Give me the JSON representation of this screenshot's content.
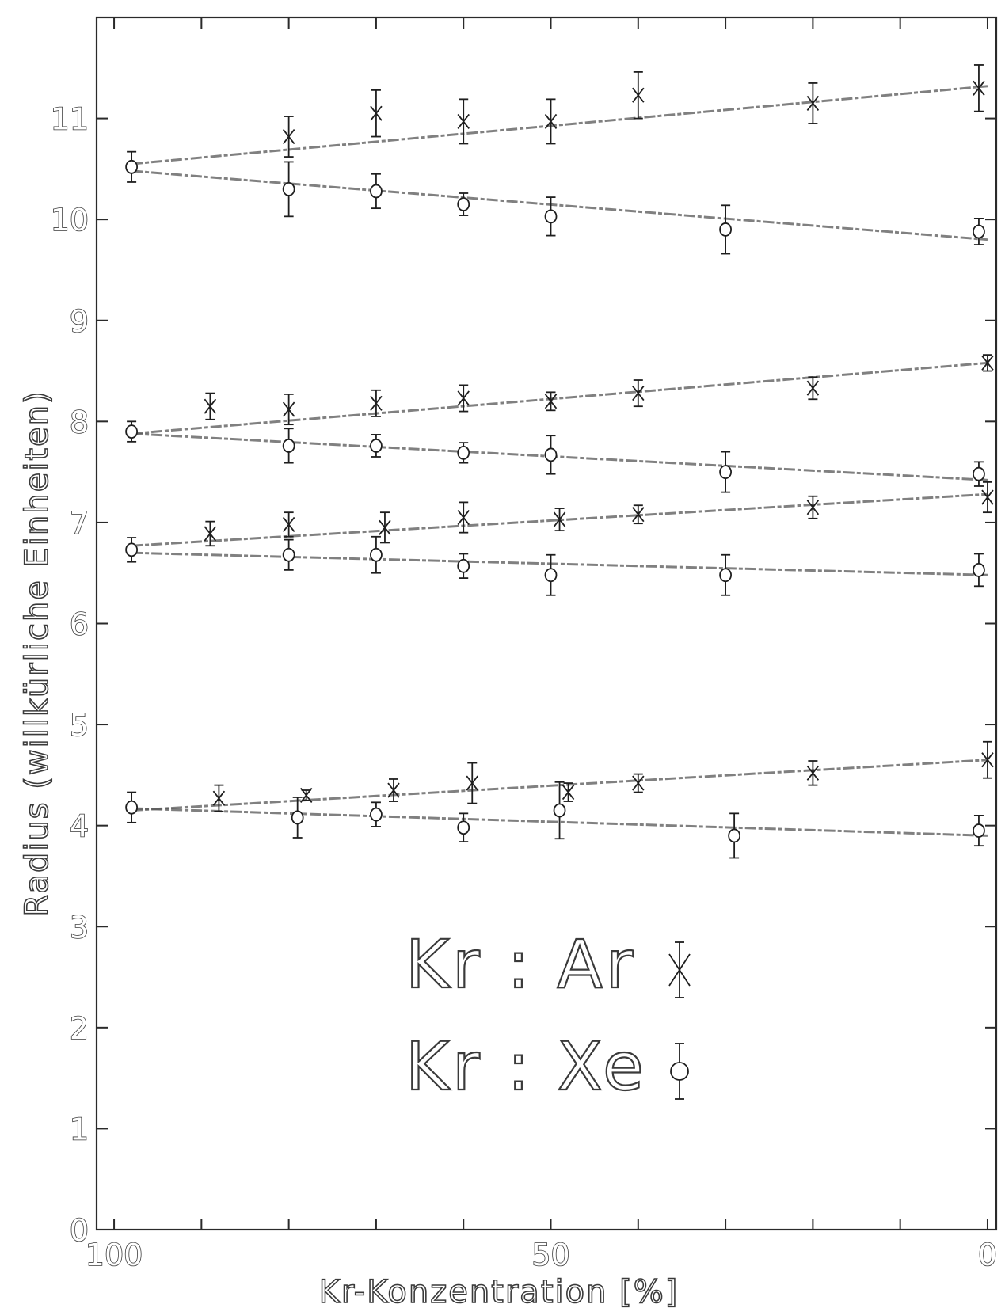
{
  "chart_data": {
    "type": "scatter",
    "title": "",
    "xlabel": "Kr-Konzentration [%]",
    "ylabel": "Radius (willkürliche Einheiten)",
    "xlim": [
      102,
      -1
    ],
    "ylim": [
      0,
      12
    ],
    "x_ticks": [
      100,
      50,
      0
    ],
    "y_ticks": [
      0,
      1,
      2,
      3,
      4,
      5,
      6,
      7,
      8,
      9,
      10,
      11
    ],
    "grid": false,
    "legend": {
      "placement": "bottom-center",
      "entries": [
        {
          "label": "Kr : Ar",
          "marker": "x"
        },
        {
          "label": "Kr : Xe",
          "marker": "o"
        }
      ]
    },
    "series": [
      {
        "group": 1,
        "marker": "x",
        "fit": [
          [
            98,
            10.55
          ],
          [
            0,
            11.32
          ]
        ],
        "points": [
          [
            80,
            10.82,
            0.2
          ],
          [
            70,
            11.05,
            0.23
          ],
          [
            60,
            10.97,
            0.22
          ],
          [
            50,
            10.97,
            0.22
          ],
          [
            40,
            11.23,
            0.23
          ],
          [
            20,
            11.15,
            0.2
          ],
          [
            1,
            11.3,
            0.23
          ]
        ]
      },
      {
        "group": 1,
        "marker": "o",
        "fit": [
          [
            98,
            10.48
          ],
          [
            0,
            9.8
          ]
        ],
        "points": [
          [
            98,
            10.52,
            0.15
          ],
          [
            80,
            10.3,
            0.27
          ],
          [
            70,
            10.28,
            0.17
          ],
          [
            60,
            10.15,
            0.11
          ],
          [
            50,
            10.03,
            0.19
          ],
          [
            30,
            9.9,
            0.24
          ],
          [
            1,
            9.88,
            0.13
          ]
        ]
      },
      {
        "group": 2,
        "marker": "x",
        "fit": [
          [
            98,
            7.88
          ],
          [
            0,
            8.58
          ]
        ],
        "points": [
          [
            89,
            8.15,
            0.13
          ],
          [
            80,
            8.12,
            0.15
          ],
          [
            70,
            8.18,
            0.13
          ],
          [
            60,
            8.23,
            0.13
          ],
          [
            50,
            8.2,
            0.09
          ],
          [
            40,
            8.28,
            0.13
          ],
          [
            20,
            8.33,
            0.11
          ],
          [
            0,
            8.58,
            0.08
          ]
        ]
      },
      {
        "group": 2,
        "marker": "o",
        "fit": [
          [
            98,
            7.88
          ],
          [
            0,
            7.42
          ]
        ],
        "points": [
          [
            98,
            7.9,
            0.1
          ],
          [
            80,
            7.76,
            0.17
          ],
          [
            70,
            7.76,
            0.11
          ],
          [
            60,
            7.69,
            0.1
          ],
          [
            50,
            7.67,
            0.19
          ],
          [
            30,
            7.5,
            0.2
          ],
          [
            1,
            7.48,
            0.12
          ]
        ]
      },
      {
        "group": 3,
        "marker": "x",
        "fit": [
          [
            98,
            6.77
          ],
          [
            0,
            7.28
          ]
        ],
        "points": [
          [
            89,
            6.89,
            0.12
          ],
          [
            80,
            6.98,
            0.12
          ],
          [
            69,
            6.95,
            0.15
          ],
          [
            60,
            7.05,
            0.15
          ],
          [
            49,
            7.03,
            0.11
          ],
          [
            40,
            7.08,
            0.09
          ],
          [
            20,
            7.15,
            0.11
          ],
          [
            0,
            7.25,
            0.15
          ]
        ]
      },
      {
        "group": 3,
        "marker": "o",
        "fit": [
          [
            98,
            6.7
          ],
          [
            0,
            6.48
          ]
        ],
        "points": [
          [
            98,
            6.73,
            0.12
          ],
          [
            80,
            6.68,
            0.15
          ],
          [
            70,
            6.68,
            0.18
          ],
          [
            60,
            6.57,
            0.12
          ],
          [
            50,
            6.48,
            0.2
          ],
          [
            30,
            6.48,
            0.2
          ],
          [
            1,
            6.53,
            0.16
          ]
        ]
      },
      {
        "group": 4,
        "marker": "x",
        "fit": [
          [
            98,
            4.15
          ],
          [
            0,
            4.65
          ]
        ],
        "points": [
          [
            88,
            4.27,
            0.13
          ],
          [
            78,
            4.3,
            0.05
          ],
          [
            68,
            4.35,
            0.11
          ],
          [
            59,
            4.42,
            0.2
          ],
          [
            48,
            4.33,
            0.09
          ],
          [
            40,
            4.42,
            0.09
          ],
          [
            20,
            4.52,
            0.12
          ],
          [
            0,
            4.65,
            0.18
          ]
        ]
      },
      {
        "group": 4,
        "marker": "o",
        "fit": [
          [
            98,
            4.17
          ],
          [
            0,
            3.9
          ]
        ],
        "points": [
          [
            98,
            4.18,
            0.15
          ],
          [
            79,
            4.08,
            0.2
          ],
          [
            70,
            4.11,
            0.12
          ],
          [
            60,
            3.98,
            0.14
          ],
          [
            49,
            4.15,
            0.28
          ],
          [
            29,
            3.9,
            0.22
          ],
          [
            1,
            3.95,
            0.15
          ]
        ]
      }
    ]
  }
}
